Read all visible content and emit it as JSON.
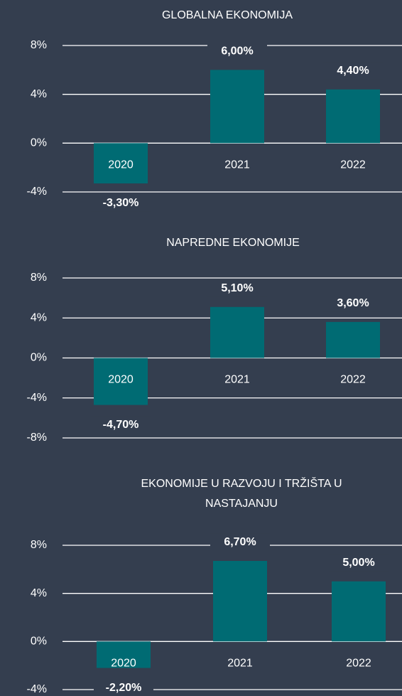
{
  "chart_data": [
    {
      "type": "bar",
      "title": "GLOBALNA EKONOMIJA",
      "categories": [
        "2020",
        "2021",
        "2022"
      ],
      "values": [
        -3.3,
        6.0,
        4.4
      ],
      "value_labels": [
        "-3,30%",
        "6,00%",
        "4,40%"
      ],
      "color": "#006b73",
      "ylim": [
        -4,
        8
      ],
      "yticks": [
        {
          "value": -4,
          "label": "-4%"
        },
        {
          "value": 0,
          "label": "0%"
        },
        {
          "value": 4,
          "label": "4%"
        },
        {
          "value": 8,
          "label": "8%"
        }
      ],
      "grid": true
    },
    {
      "type": "bar",
      "title": "NAPREDNE EKONOMIJE",
      "categories": [
        "2020",
        "2021",
        "2022"
      ],
      "values": [
        -4.7,
        5.1,
        3.6
      ],
      "value_labels": [
        "-4,70%",
        "5,10%",
        "3,60%"
      ],
      "color": "#006b73",
      "ylim": [
        -8,
        8
      ],
      "yticks": [
        {
          "value": -8,
          "label": "-8%"
        },
        {
          "value": -4,
          "label": "-4%"
        },
        {
          "value": 0,
          "label": "0%"
        },
        {
          "value": 4,
          "label": "4%"
        },
        {
          "value": 8,
          "label": "8%"
        }
      ],
      "grid": true
    },
    {
      "type": "bar",
      "title": "EKONOMIJE U RAZVOJU I TRŽIŠTA U NASTAJANJU",
      "categories": [
        "2020",
        "2021",
        "2022"
      ],
      "values": [
        -2.2,
        6.7,
        5.0
      ],
      "value_labels": [
        "-2,20%",
        "6,70%",
        "5,00%"
      ],
      "color": "#006b73",
      "ylim": [
        -4,
        8
      ],
      "yticks": [
        {
          "value": -4,
          "label": "-4%"
        },
        {
          "value": 0,
          "label": "0%"
        },
        {
          "value": 4,
          "label": "4%"
        },
        {
          "value": 8,
          "label": "8%"
        }
      ],
      "grid": true
    }
  ]
}
